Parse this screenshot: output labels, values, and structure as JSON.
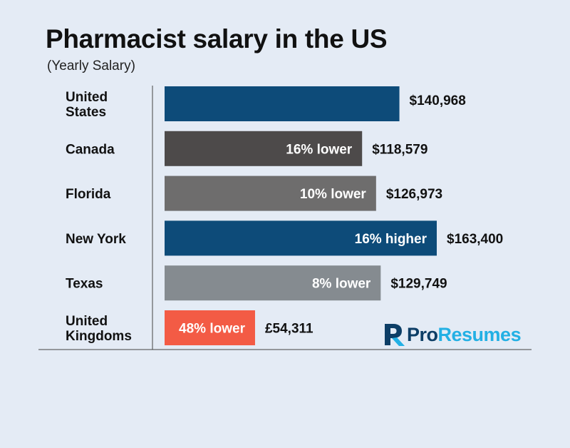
{
  "chart_data": {
    "type": "bar",
    "orientation": "horizontal",
    "title": "Pharmacist salary in the US",
    "subtitle": "(Yearly Salary)",
    "categories": [
      [
        "United",
        "States"
      ],
      [
        "Canada"
      ],
      [
        "Florida"
      ],
      [
        "New York"
      ],
      [
        "Texas"
      ],
      [
        "United",
        "Kingdoms"
      ]
    ],
    "values": [
      140968,
      118579,
      126973,
      163400,
      129749,
      54311
    ],
    "value_labels": [
      "$140,968",
      "$118,579",
      "$126,973",
      "$163,400",
      "$129,749",
      "£54,311"
    ],
    "bar_labels": [
      "",
      "16% lower",
      "10% lower",
      "16% higher",
      "8% lower",
      "48% lower"
    ],
    "colors": [
      "#0d4b79",
      "#4d4a4a",
      "#6e6d6d",
      "#0d4b79",
      "#858b90",
      "#f35b45"
    ],
    "xlim": [
      0,
      163400
    ],
    "grid": false,
    "legend": "none"
  },
  "logo": {
    "pro": "Pro",
    "resumes": "Resumes"
  }
}
